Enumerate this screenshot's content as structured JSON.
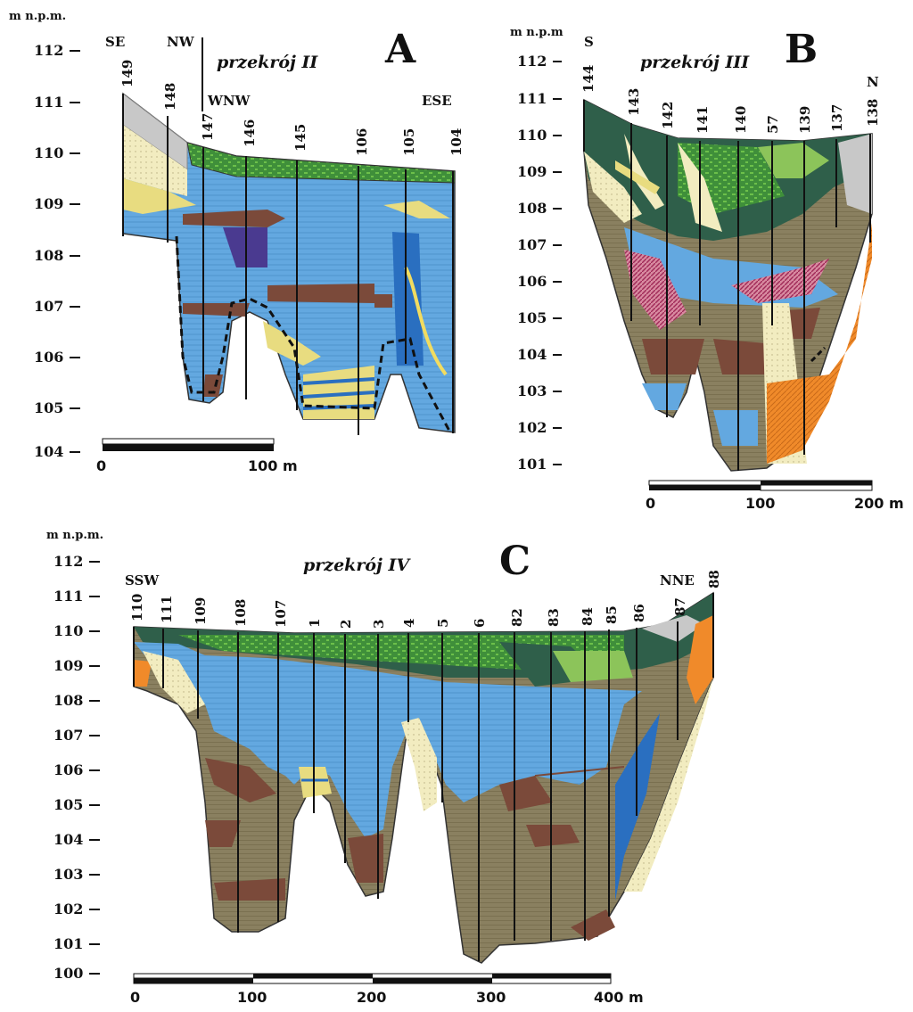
{
  "colors": {
    "topsoil": "#2f5f4a",
    "peat": "#3f8f3a",
    "peat_light": "#8cc45a",
    "water_sat": "#63a8e0",
    "water_deep": "#2a6fc0",
    "clay_brown": "#7b4a3a",
    "silt_olive": "#8a8060",
    "sand": "#f2ecc0",
    "yellow_sand": "#e8dc80",
    "orange": "#f08a2a",
    "purple": "#4a3a90",
    "pink": "#c03a70",
    "grey": "#c8c8c8"
  },
  "panels": [
    {
      "letter": "A",
      "title": "przekrój  II",
      "unit": "m n.p.m.",
      "y_ticks": [
        "112",
        "111",
        "110",
        "109",
        "108",
        "107",
        "106",
        "105",
        "104"
      ],
      "boreholes": [
        "149",
        "148",
        "147",
        "146",
        "145",
        "106",
        "105",
        "104"
      ],
      "directions": [
        "SE",
        "NW",
        "WNW",
        "ESE"
      ],
      "scale": {
        "start": "0",
        "end": "100 m"
      }
    },
    {
      "letter": "B",
      "title": "przekrój  III",
      "unit": "m n.p.m",
      "y_ticks": [
        "112",
        "111",
        "110",
        "109",
        "108",
        "107",
        "106",
        "105",
        "104",
        "103",
        "102",
        "101"
      ],
      "boreholes": [
        "144",
        "143",
        "142",
        "141",
        "140",
        "57",
        "139",
        "137",
        "138"
      ],
      "directions": [
        "S",
        "N"
      ],
      "scale": {
        "start": "0",
        "mid": "100",
        "end": "200 m"
      }
    },
    {
      "letter": "C",
      "title": "przekrój  IV",
      "unit": "m n.p.m.",
      "y_ticks": [
        "112",
        "111",
        "110",
        "109",
        "108",
        "107",
        "106",
        "105",
        "104",
        "103",
        "102",
        "101",
        "100"
      ],
      "boreholes": [
        "110",
        "111",
        "109",
        "108",
        "107",
        "1",
        "2",
        "3",
        "4",
        "5",
        "6",
        "82",
        "83",
        "84",
        "85",
        "86",
        "87",
        "88"
      ],
      "directions": [
        "SSW",
        "NNE"
      ],
      "scale": {
        "start": "0",
        "t1": "100",
        "t2": "200",
        "t3": "300",
        "end": "400 m"
      }
    }
  ]
}
